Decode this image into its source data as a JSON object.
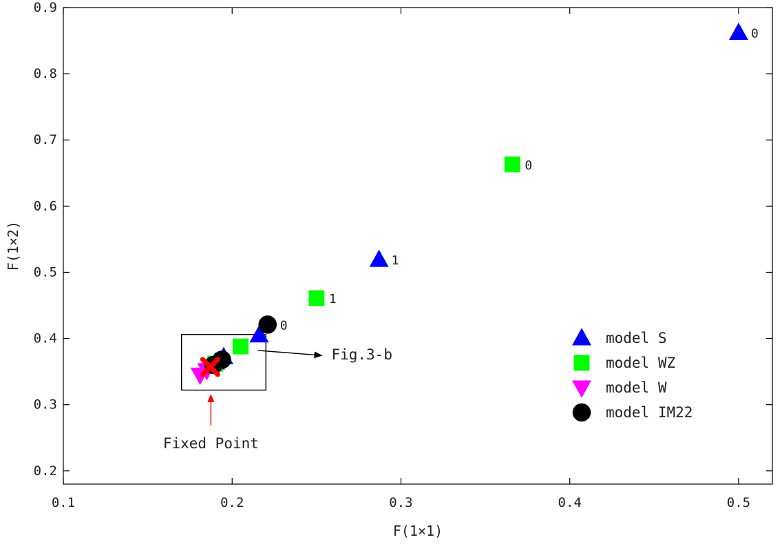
{
  "chart_data": {
    "type": "scatter",
    "title": "",
    "xlabel": "F(1×1)",
    "ylabel": "F(1×2)",
    "xlim": [
      0.1,
      0.52
    ],
    "ylim": [
      0.18,
      0.9
    ],
    "xticks": [
      "0.1",
      "0.2",
      "0.3",
      "0.4",
      "0.5"
    ],
    "yticks": [
      "0.2",
      "0.3",
      "0.4",
      "0.5",
      "0.6",
      "0.7",
      "0.8",
      "0.9"
    ],
    "grid": false,
    "legend_position": "right",
    "series": [
      {
        "name": "model S",
        "marker": "triangle-up",
        "color": "#0000ff",
        "points": [
          {
            "x": 0.5,
            "y": 0.862,
            "label": "0"
          },
          {
            "x": 0.287,
            "y": 0.519,
            "label": "1"
          },
          {
            "x": 0.216,
            "y": 0.405,
            "label": ""
          },
          {
            "x": 0.195,
            "y": 0.372,
            "label": ""
          },
          {
            "x": 0.19,
            "y": 0.364,
            "label": ""
          }
        ]
      },
      {
        "name": "model WZ",
        "marker": "square",
        "color": "#00ff00",
        "points": [
          {
            "x": 0.366,
            "y": 0.663,
            "label": "0"
          },
          {
            "x": 0.25,
            "y": 0.461,
            "label": "1"
          },
          {
            "x": 0.205,
            "y": 0.388,
            "label": ""
          },
          {
            "x": 0.19,
            "y": 0.362,
            "label": ""
          }
        ]
      },
      {
        "name": "model W",
        "marker": "triangle-down",
        "color": "#ff00ff",
        "points": [
          {
            "x": 0.181,
            "y": 0.345,
            "label": ""
          },
          {
            "x": 0.185,
            "y": 0.352,
            "label": ""
          }
        ]
      },
      {
        "name": "model IM22",
        "marker": "circle",
        "color": "#000000",
        "points": [
          {
            "x": 0.221,
            "y": 0.421,
            "label": "0"
          },
          {
            "x": 0.194,
            "y": 0.368,
            "label": ""
          },
          {
            "x": 0.189,
            "y": 0.36,
            "label": ""
          }
        ]
      }
    ],
    "fixed_point": {
      "x": 0.187,
      "y": 0.357,
      "color": "#ff0000",
      "label": "Fixed Point"
    },
    "zoom_box": {
      "x0": 0.17,
      "x1": 0.22,
      "y0": 0.322,
      "y1": 0.406,
      "label": "Fig.3-b",
      "arrow_to": {
        "x": 0.258,
        "y": 0.39
      }
    }
  }
}
